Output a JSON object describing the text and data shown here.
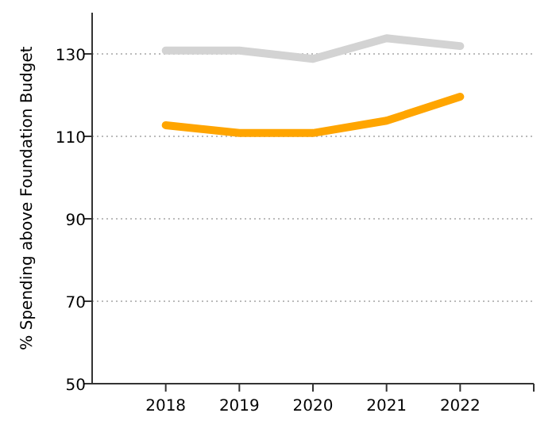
{
  "chart_data": {
    "type": "line",
    "ylabel": "% Spending above Foundation Budget",
    "x": [
      2018,
      2019,
      2020,
      2021,
      2022
    ],
    "xlim": [
      2017,
      2023
    ],
    "xticks": [
      2018,
      2019,
      2020,
      2021,
      2022
    ],
    "ylim": [
      50,
      140
    ],
    "yticks": [
      50,
      70,
      90,
      110,
      130
    ],
    "grid": "y",
    "series": [
      {
        "color": "#d3d3d3",
        "values": [
          130.8,
          130.8,
          128.8,
          133.8,
          131.9
        ]
      },
      {
        "color": "#ffa500",
        "values": [
          112.7,
          110.8,
          110.8,
          113.8,
          119.6
        ]
      }
    ]
  }
}
